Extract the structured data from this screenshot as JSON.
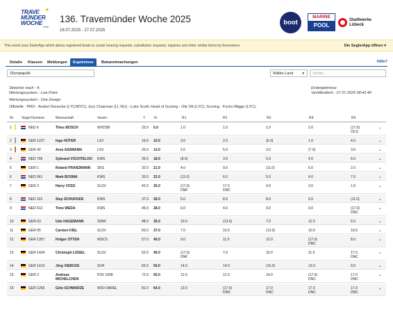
{
  "header": {
    "logo": {
      "line1": "TRAVE",
      "line2": "MÜNDER",
      "line3": "WOCHE",
      "line4": "#136"
    },
    "title": "136. Travemünder Woche 2025",
    "dates": "18.07.2025 - 27.07.2025",
    "sponsors": {
      "boot": "boot",
      "marine_top": "MARINE",
      "marine_bottom": "POOL",
      "stadtwerke": "Stadtwerke Lübeck"
    }
  },
  "banner": {
    "text": "This event uses SailorApp which allows registered boats to create hearing requests, substitution requests, inquiries and other similar items by themselves",
    "app_link": "Die SeglerApp öffnen ▾"
  },
  "tabs": {
    "items": [
      "Details",
      "Klassen",
      "Meldungen",
      "Ergebnisse",
      "Bekanntmachungen"
    ],
    "active": "Ergebnisse",
    "help": "Hilfe?"
  },
  "filters": {
    "class_select": "Olympiajolle",
    "country_select": "Wähle Land",
    "search_placeholder": "Suche..."
  },
  "info": {
    "discards": "Streicher nach : 4;",
    "scoring_label": "Wertungssystem : Low Point",
    "system_label": "Wertungssystem : One Design",
    "officials": "Offizielle : PRO - Andert Denecke (LYC/MYC); Jury Chairman (IJ, NU) - Luke Scott; Head of Scoring - Ole Ott (LYC); Scoring - Focko Migge (LYC);",
    "status": "Endergebnisse",
    "published": "Veröffentlicht : 27.07.2025 08:42:40"
  },
  "table": {
    "columns": [
      "Nr",
      "Segel Nummer",
      "Mannschaft",
      "Verein",
      "T.",
      "N.",
      "R1",
      "R2",
      "R3",
      "R4",
      "R5"
    ],
    "rows": [
      {
        "nr": "1",
        "sail": "NED 6",
        "crew": "Thies BOSCH",
        "crew2": "",
        "club": "WVDSB",
        "t": "22.0",
        "n": "5.0",
        "r1": "1.0",
        "r2": "1.0",
        "r3": "1.0",
        "r4": "2.0",
        "r5": "(17.0)",
        "r1s": "",
        "r2s": "",
        "r3s": "",
        "r4s": "",
        "r5s": "OCS",
        "country": "NED",
        "strip": "#f2e233"
      },
      {
        "nr": "2",
        "sail": "GER 1227",
        "crew": "Ingo HÜTER",
        "crew2": "",
        "club": "LSV",
        "t": "16.0",
        "n": "10.0",
        "r1": "3.0",
        "r2": "2.0",
        "r3": "(6.0)",
        "r4": "1.0",
        "r5": "4.0",
        "r1s": "",
        "r2s": "",
        "r3s": "",
        "r4s": "",
        "r5s": "",
        "country": "GER",
        "strip": "#a0a0a0"
      },
      {
        "nr": "3",
        "sail": "GER 42",
        "crew": "Arne ASSMANN",
        "crew2": "",
        "club": "LSV",
        "t": "20.0",
        "n": "13.0",
        "r1": "2.0",
        "r2": "5.0",
        "r3": "3.0",
        "r4": "(7.0)",
        "r5": "3.0",
        "r1s": "",
        "r2s": "",
        "r3s": "",
        "r4s": "",
        "r5s": "",
        "country": "GER",
        "strip": "#b87333"
      },
      {
        "nr": "4",
        "sail": "NED 709",
        "crew": "Sybrand VOCHTELOO",
        "crew2": "",
        "club": "KWS",
        "t": "26.0",
        "n": "18.0",
        "r1": "(8.0)",
        "r2": "3.0",
        "r3": "5.0",
        "r4": "4.0",
        "r5": "6.0",
        "r1s": "",
        "r2s": "",
        "r3s": "",
        "r4s": "",
        "r5s": "",
        "country": "NED",
        "strip": ""
      },
      {
        "nr": "5",
        "sail": "GER 1",
        "crew": "Roland FRANZMANN",
        "crew2": "",
        "club": "SKS",
        "t": "32.0",
        "n": "21.0",
        "r1": "4.0",
        "r2": "9.0",
        "r3": "(11.0)",
        "r4": "6.0",
        "r5": "2.0",
        "r1s": "",
        "r2s": "",
        "r3s": "",
        "r4s": "",
        "r5s": "",
        "country": "GER",
        "strip": ""
      },
      {
        "nr": "6",
        "sail": "NED 561",
        "crew": "Mark BOSMA",
        "crew2": "",
        "club": "KWS",
        "t": "33.0",
        "n": "22.0",
        "r1": "(11.0)",
        "r2": "6.0",
        "r3": "5.0",
        "r4": "4.0",
        "r5": "7.0",
        "r1s": "",
        "r2s": "",
        "r3s": "",
        "r4s": "",
        "r5s": "",
        "country": "NED",
        "strip": ""
      },
      {
        "nr": "7",
        "sail": "GER 3",
        "crew": "Harry VOSS",
        "crew2": "",
        "club": "SLSV",
        "t": "42.0",
        "n": "25.0",
        "r1": "(17.0)",
        "r2": "17.0",
        "r3": "4.0",
        "r4": "3.0",
        "r5": "1.0",
        "r1s": "DNF",
        "r2s": "DNC",
        "r3s": "",
        "r4s": "",
        "r5s": "",
        "country": "GER",
        "strip": ""
      },
      {
        "nr": "8",
        "sail": "NED 101",
        "crew": "Siep SCHUKKEN",
        "crew2": "",
        "club": "KWS",
        "t": "37.0",
        "n": "26.0",
        "r1": "5.0",
        "r2": "8.0",
        "r3": "8.0",
        "r4": "5.0",
        "r5": "(11.0)",
        "r1s": "",
        "r2s": "",
        "r3s": "",
        "r4s": "",
        "r5s": "",
        "country": "NED",
        "strip": ""
      },
      {
        "nr": "9",
        "sail": "NED 612",
        "crew": "Timo WEDA",
        "crew2": "",
        "club": "KWS",
        "t": "45.0",
        "n": "28.0",
        "r1": "6.0",
        "r2": "4.0",
        "r3": "9.0",
        "r4": "9.0",
        "r5": "(17.0)",
        "r1s": "",
        "r2s": "",
        "r3s": "",
        "r4s": "",
        "r5s": "DNC",
        "country": "NED",
        "strip": ""
      },
      {
        "nr": "10",
        "sail": "GER 63",
        "crew": "Udo HAGEMANN",
        "crew2": "",
        "club": "SWW",
        "t": "48.0",
        "n": "35.0",
        "r1": "10.0",
        "r2": "(13.0)",
        "r3": "7.0",
        "r4": "12.0",
        "r5": "6.0",
        "r1s": "",
        "r2s": "",
        "r3s": "",
        "r4s": "",
        "r5s": "",
        "country": "GER",
        "strip": ""
      },
      {
        "nr": "11",
        "sail": "GER 65",
        "crew": "Carsten KIEL",
        "crew2": "",
        "club": "SLSV",
        "t": "50.0",
        "n": "37.0",
        "r1": "7.0",
        "r2": "10.0",
        "r3": "(13.0)",
        "r4": "10.0",
        "r5": "10.0",
        "r1s": "",
        "r2s": "",
        "r3s": "",
        "r4s": "",
        "r5s": "",
        "country": "GER",
        "strip": ""
      },
      {
        "nr": "12",
        "sail": "GER 1357",
        "crew": "Holger OTTEN",
        "crew2": "",
        "club": "WSCS",
        "t": "57.0",
        "n": "40.0",
        "r1": "9.0",
        "r2": "11.0",
        "r3": "12.0",
        "r4": "(17.0)",
        "r5": "8.0",
        "r1s": "",
        "r2s": "",
        "r3s": "",
        "r4s": "DNC",
        "r5s": "",
        "country": "GER",
        "strip": ""
      },
      {
        "nr": "13",
        "sail": "GER 1434",
        "crew": "Christoph LISSEL",
        "crew2": "",
        "club": "SLSV",
        "t": "62.0",
        "n": "45.0",
        "r1": "(17.0)",
        "r2": "7.0",
        "r3": "10.0",
        "r4": "11.0",
        "r5": "17.0",
        "r1s": "DNF",
        "r2s": "",
        "r3s": "",
        "r4s": "",
        "r5s": "DNC",
        "country": "GER",
        "strip": ""
      },
      {
        "nr": "14",
        "sail": "GER 1410",
        "crew": "Jörg VIEBCKE",
        "crew2": "",
        "club": "SVH",
        "t": "65.0",
        "n": "50.0",
        "r1": "14.0",
        "r2": "14.0",
        "r3": "(15.0)",
        "r4": "13.0",
        "r5": "9.0",
        "r1s": "",
        "r2s": "",
        "r3s": "",
        "r4s": "",
        "r5s": "",
        "country": "GER",
        "strip": ""
      },
      {
        "nr": "15",
        "sail": "GER 2",
        "crew": "Andreas",
        "crew2": "MICHELCHEN",
        "club": "PSV 1908",
        "t": "72.0",
        "n": "55.0",
        "r1": "12.0",
        "r2": "12.0",
        "r3": "14.0",
        "r4": "(17.0)",
        "r5": "17.0",
        "r1s": "",
        "r2s": "",
        "r3s": "",
        "r4s": "DNC",
        "r5s": "DNC",
        "country": "GER",
        "strip": ""
      },
      {
        "nr": "16",
        "sail": "GER 1265",
        "crew": "Götz SCHWARZE",
        "crew2": "",
        "club": "WSV-VAREL",
        "t": "81.0",
        "n": "64.0",
        "r1": "13.0",
        "r2": "(17.0)",
        "r3": "17.0",
        "r4": "17.0",
        "r5": "17.0",
        "r1s": "",
        "r2s": "DNS",
        "r3s": "DNC",
        "r4s": "DNC",
        "r5s": "DNC",
        "country": "GER",
        "strip": ""
      }
    ]
  },
  "colors": {
    "accent": "#1a5aa8",
    "banner_bg": "#fdf6d6",
    "logo": "#1b3f8f"
  },
  "icons": {
    "row_expand": "chevron-down-icon",
    "country_caret": "caret-down-icon"
  }
}
